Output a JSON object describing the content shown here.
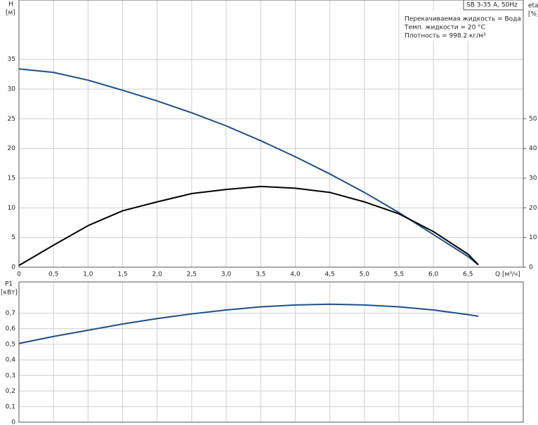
{
  "chart_data": [
    {
      "type": "line",
      "ylabel": "H",
      "yunit": "[м]",
      "y2label": "eta",
      "y2unit": "[%]",
      "xlabel": "Q [м³/ч]",
      "info_title": "SB 3-35 A, 50Hz",
      "info": [
        "Перекачиваемая жидкость = Вода",
        "Темп. жидкости = 20 °C",
        "Плотность = 998.2 кг/м³"
      ],
      "x": [
        0,
        0.5,
        1.0,
        1.5,
        2.0,
        2.5,
        3.0,
        3.5,
        4.0,
        4.5,
        5.0,
        5.5,
        6.0,
        6.5,
        6.65
      ],
      "series": [
        {
          "color": "#1d4f86",
          "axis": "y",
          "values": [
            33.4,
            32.8,
            31.5,
            29.8,
            28.0,
            26.0,
            23.8,
            21.3,
            18.6,
            15.7,
            12.6,
            9.2,
            5.5,
            1.8,
            0.4
          ]
        },
        {
          "color": "#000000",
          "axis": "y2",
          "values": [
            0.6,
            7.4,
            14,
            19,
            22,
            24.8,
            26.2,
            27.2,
            26.6,
            25.2,
            22,
            18,
            12,
            4.4,
            0.8
          ]
        }
      ],
      "xlim": [
        0,
        7.3
      ],
      "xticks": [
        0,
        {
          "value": 0.5,
          "label": "0,5"
        },
        {
          "value": 1,
          "label": "1,0"
        },
        {
          "value": 1.5,
          "label": "1,5"
        },
        {
          "value": 2,
          "label": "2,0"
        },
        {
          "value": 2.5,
          "label": "2,5"
        },
        {
          "value": 3,
          "label": "3,0"
        },
        {
          "value": 3.5,
          "label": "3,5"
        },
        {
          "value": 4,
          "label": "4,0"
        },
        {
          "value": 4.5,
          "label": "4,5"
        },
        {
          "value": 5,
          "label": "5,0"
        },
        {
          "value": 5.5,
          "label": "5,5"
        },
        {
          "value": 6,
          "label": "6,0"
        },
        {
          "value": 6.5,
          "label": "6,5"
        }
      ],
      "ylim": [
        0,
        45
      ],
      "yticks": [
        0,
        5,
        10,
        15,
        20,
        25,
        30,
        35
      ],
      "y2lim": [
        0,
        90
      ],
      "y2ticks": [
        0,
        10,
        20,
        30,
        40,
        50
      ],
      "grid": true
    },
    {
      "type": "line",
      "ylabel": "P1",
      "yunit": "[кВт]",
      "x": [
        0,
        0.5,
        1.0,
        1.5,
        2.0,
        2.5,
        3.0,
        3.5,
        4.0,
        4.5,
        5.0,
        5.5,
        6.0,
        6.5,
        6.65
      ],
      "series": [
        {
          "color": "#1d4f86",
          "axis": "y",
          "values": [
            0.505,
            0.55,
            0.59,
            0.63,
            0.665,
            0.695,
            0.72,
            0.74,
            0.752,
            0.757,
            0.752,
            0.74,
            0.72,
            0.69,
            0.68
          ]
        }
      ],
      "xlim": [
        0,
        7.3
      ],
      "ylim": [
        0,
        0.9
      ],
      "yticks": [
        0,
        {
          "value": 0.1,
          "label": "0,1"
        },
        {
          "value": 0.2,
          "label": "0,2"
        },
        {
          "value": 0.3,
          "label": "0,3"
        },
        {
          "value": 0.4,
          "label": "0,4"
        },
        {
          "value": 0.5,
          "label": "0,5"
        },
        {
          "value": 0.6,
          "label": "0,6"
        },
        {
          "value": 0.7,
          "label": "0,7"
        }
      ],
      "grid": true
    }
  ]
}
